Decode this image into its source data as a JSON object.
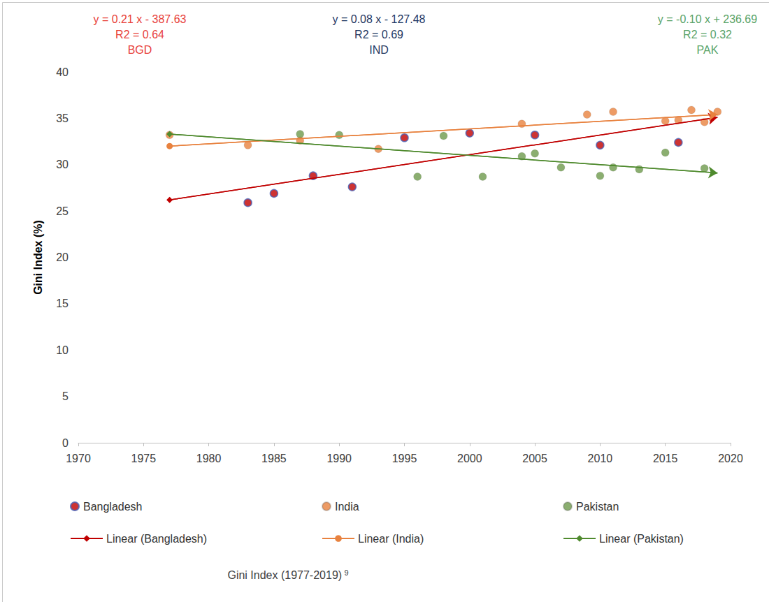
{
  "chart_data": {
    "type": "scatter",
    "subtitle": "Gini Index (1977-2019)",
    "footnote_mark": "9",
    "y_label": "Gini Index (%)",
    "xlim": [
      1970,
      2020
    ],
    "xticks": [
      1970,
      1975,
      1980,
      1985,
      1990,
      1995,
      2000,
      2005,
      2010,
      2015,
      2020
    ],
    "ylim": [
      0,
      40
    ],
    "yticks": [
      0,
      5,
      10,
      15,
      20,
      25,
      30,
      35,
      40
    ],
    "grid": false,
    "legend": "bottom",
    "annotations": [
      {
        "lines": [
          "y = 0.21 x - 387.63",
          "R2 = 0.64",
          "BGD"
        ],
        "color": "#e8413a"
      },
      {
        "lines": [
          "y = 0.08 x - 127.48",
          "R2 = 0.69",
          "IND"
        ],
        "color": "#1f3864"
      },
      {
        "lines": [
          "y = -0.10 x + 236.69",
          "R2 = 0.32",
          "PAK"
        ],
        "color": "#5aa469"
      }
    ],
    "series": [
      {
        "name": "Bangladesh",
        "type": "scatter",
        "marker": "circle",
        "color": "#c00000",
        "x": [
          1983,
          1985,
          1988,
          1991,
          1995,
          2000,
          2005,
          2010,
          2016
        ],
        "values": [
          25.9,
          26.9,
          28.8,
          27.6,
          32.9,
          33.4,
          33.2,
          32.1,
          32.4
        ]
      },
      {
        "name": "India",
        "type": "scatter",
        "marker": "circle",
        "color": "#e8823f",
        "x": [
          1977,
          1983,
          1987,
          1993,
          2004,
          2009,
          2011,
          2015,
          2016,
          2017,
          2018,
          2019
        ],
        "values": [
          33.2,
          32.1,
          32.6,
          31.7,
          34.4,
          35.4,
          35.7,
          34.7,
          34.8,
          35.9,
          34.6,
          35.7
        ]
      },
      {
        "name": "Pakistan",
        "type": "scatter",
        "marker": "circle",
        "color": "#6e9a4c",
        "x": [
          1987,
          1990,
          1996,
          1998,
          2001,
          2004,
          2005,
          2007,
          2010,
          2011,
          2013,
          2015,
          2018
        ],
        "values": [
          33.3,
          33.2,
          28.7,
          33.1,
          28.7,
          30.9,
          31.2,
          29.7,
          28.8,
          29.7,
          29.5,
          31.3,
          29.6
        ]
      },
      {
        "name": "Linear (Bangladesh)",
        "type": "line",
        "marker": "diamond",
        "line_style": "solid",
        "color": "#c00000",
        "x": [
          1977,
          2019
        ],
        "values": [
          26.2,
          35.1
        ]
      },
      {
        "name": "Linear (India)",
        "type": "line",
        "marker": "circle",
        "line_style": "solid",
        "color": "#e8823f",
        "x": [
          1977,
          2019
        ],
        "values": [
          32.0,
          35.4
        ]
      },
      {
        "name": "Linear (Pakistan)",
        "type": "line",
        "marker": "diamond",
        "line_style": "solid",
        "color": "#4f8a2e",
        "x": [
          1977,
          2019
        ],
        "values": [
          33.3,
          29.1
        ]
      }
    ]
  }
}
